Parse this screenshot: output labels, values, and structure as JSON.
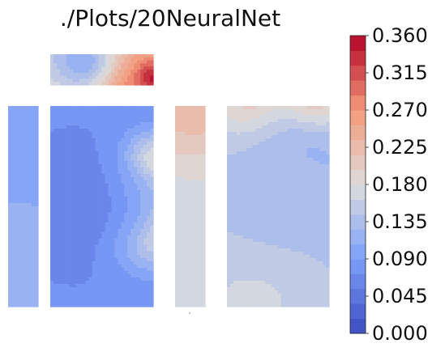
{
  "chart_data": {
    "type": "heatmap",
    "title": "./Plots/20NeuralNet",
    "colormap": "coolwarm",
    "colorbar": {
      "min": 0.0,
      "max": 0.36,
      "levels": 20,
      "ticks": [
        "0.000",
        "0.045",
        "0.090",
        "0.135",
        "0.180",
        "0.225",
        "0.270",
        "0.315",
        "0.360"
      ]
    },
    "panels": [
      {
        "id": "top-wall",
        "base_value": 0.18,
        "hotspots": [
          {
            "u": 0.6,
            "v": 0.85,
            "value": 0.34,
            "spread": 0.35
          },
          {
            "u": 0.98,
            "v": 0.75,
            "value": 0.36,
            "spread": 0.12
          },
          {
            "u": 0.3,
            "v": 0.2,
            "value": 0.11,
            "spread": 0.3
          }
        ]
      },
      {
        "id": "left-wall",
        "base_value": 0.11,
        "hotspots": [
          {
            "u": 0.5,
            "v": 0.35,
            "value": 0.1,
            "spread": 0.4
          },
          {
            "u": 0.2,
            "v": 0.9,
            "value": 0.12,
            "spread": 0.3
          }
        ]
      },
      {
        "id": "front-wall",
        "base_value": 0.08,
        "hotspots": [
          {
            "u": 0.95,
            "v": 0.6,
            "value": 0.3,
            "spread": 0.12
          },
          {
            "u": 0.98,
            "v": 0.3,
            "value": 0.28,
            "spread": 0.1
          },
          {
            "u": 0.8,
            "v": 0.5,
            "value": 0.18,
            "spread": 0.15
          },
          {
            "u": 0.3,
            "v": 0.5,
            "value": 0.06,
            "spread": 0.3
          }
        ]
      },
      {
        "id": "right-wall",
        "base_value": 0.18,
        "hotspots": [
          {
            "u": 0.5,
            "v": 0.05,
            "value": 0.24,
            "spread": 0.25
          },
          {
            "u": 0.3,
            "v": 0.6,
            "value": 0.17,
            "spread": 0.3
          }
        ]
      },
      {
        "id": "back-wall",
        "base_value": 0.14,
        "hotspots": [
          {
            "u": 0.8,
            "v": 0.02,
            "value": 0.29,
            "spread": 0.12
          },
          {
            "u": 0.3,
            "v": 0.0,
            "value": 0.24,
            "spread": 0.15
          },
          {
            "u": 0.75,
            "v": 0.3,
            "value": 0.1,
            "spread": 0.2
          },
          {
            "u": 0.3,
            "v": 0.9,
            "value": 0.18,
            "spread": 0.2
          },
          {
            "u": 0.5,
            "v": 0.5,
            "value": 0.14,
            "spread": 0.3
          }
        ]
      }
    ]
  }
}
